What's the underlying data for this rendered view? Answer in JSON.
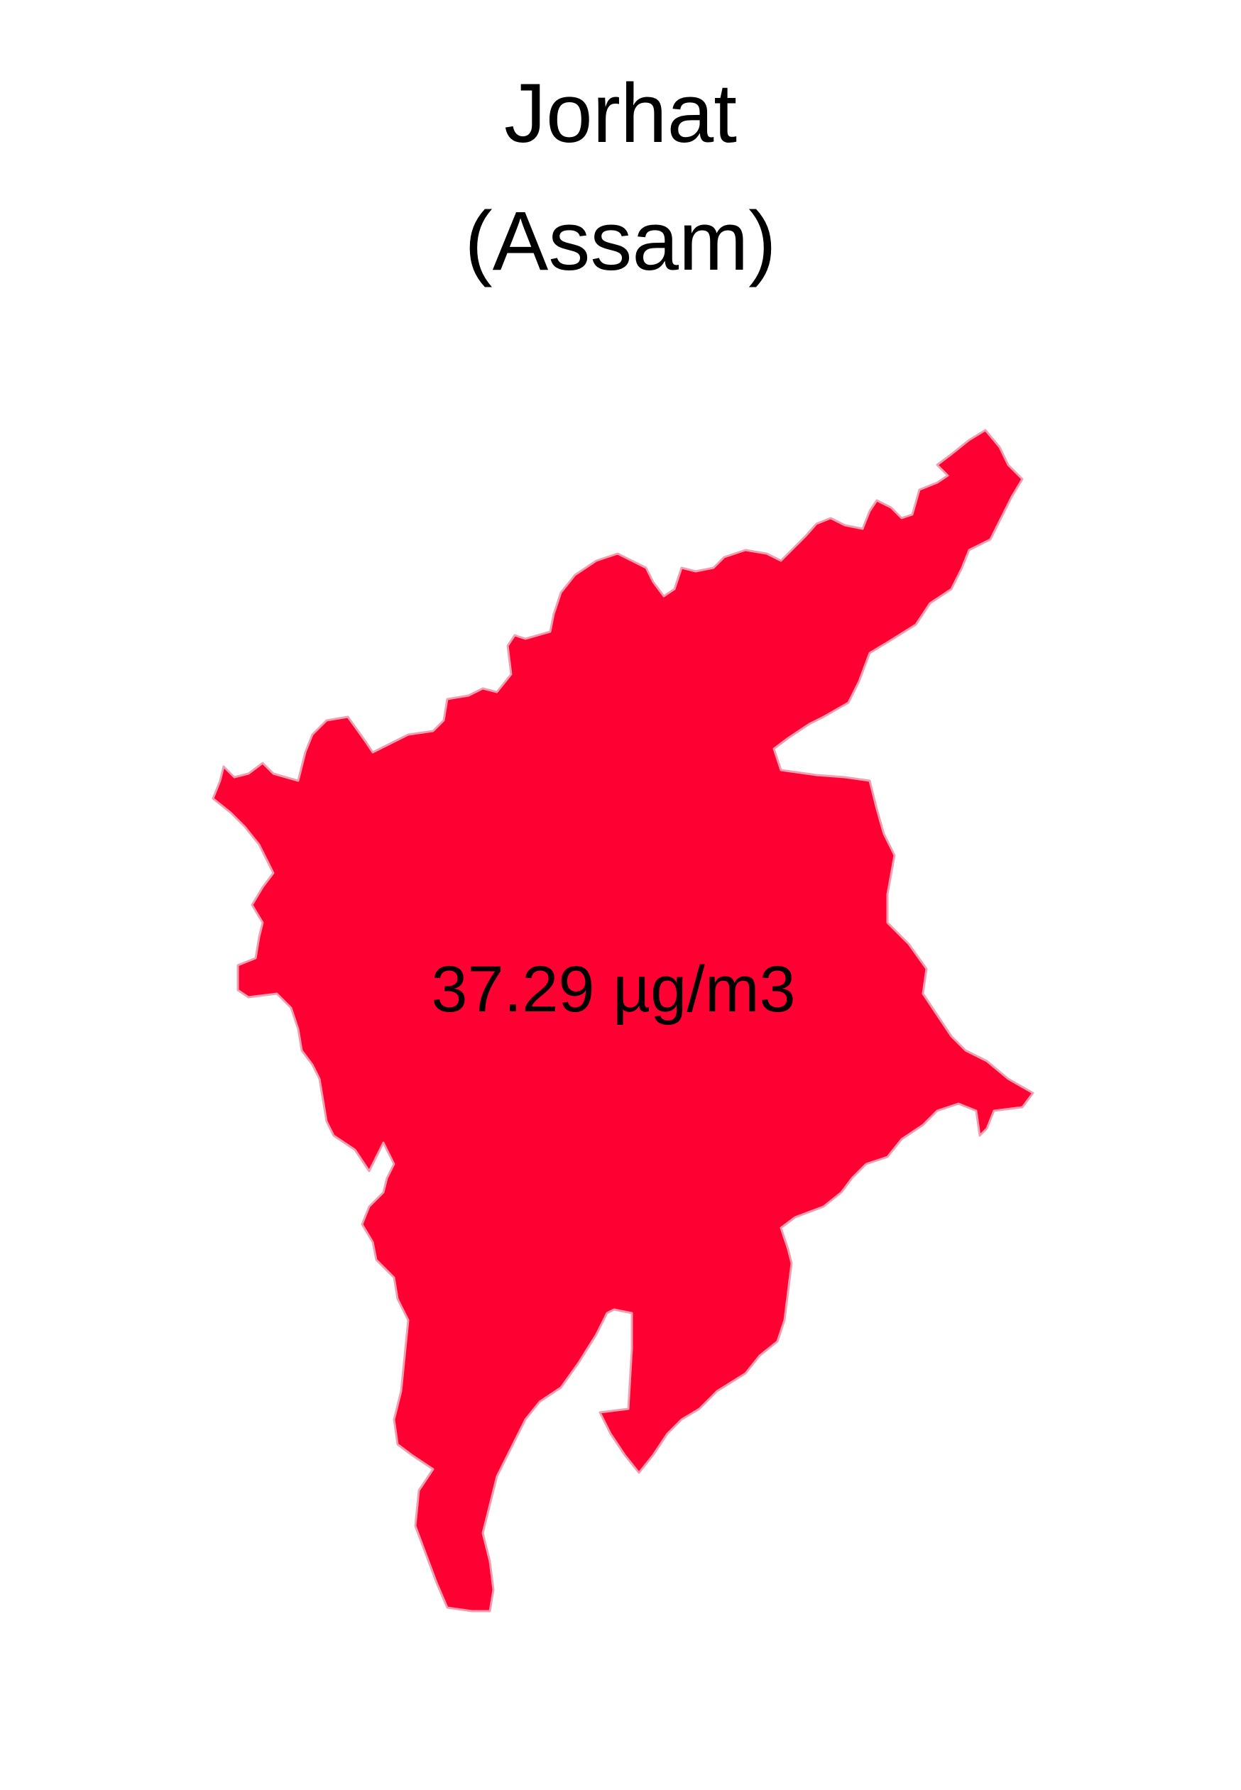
{
  "map": {
    "title": "Jorhat",
    "subtitle": "(Assam)",
    "value_label": "37.29 µg/m3",
    "fill_color": "#FF0033",
    "border_color": "#F2A0B0",
    "background_color": "#FFFFFF"
  }
}
